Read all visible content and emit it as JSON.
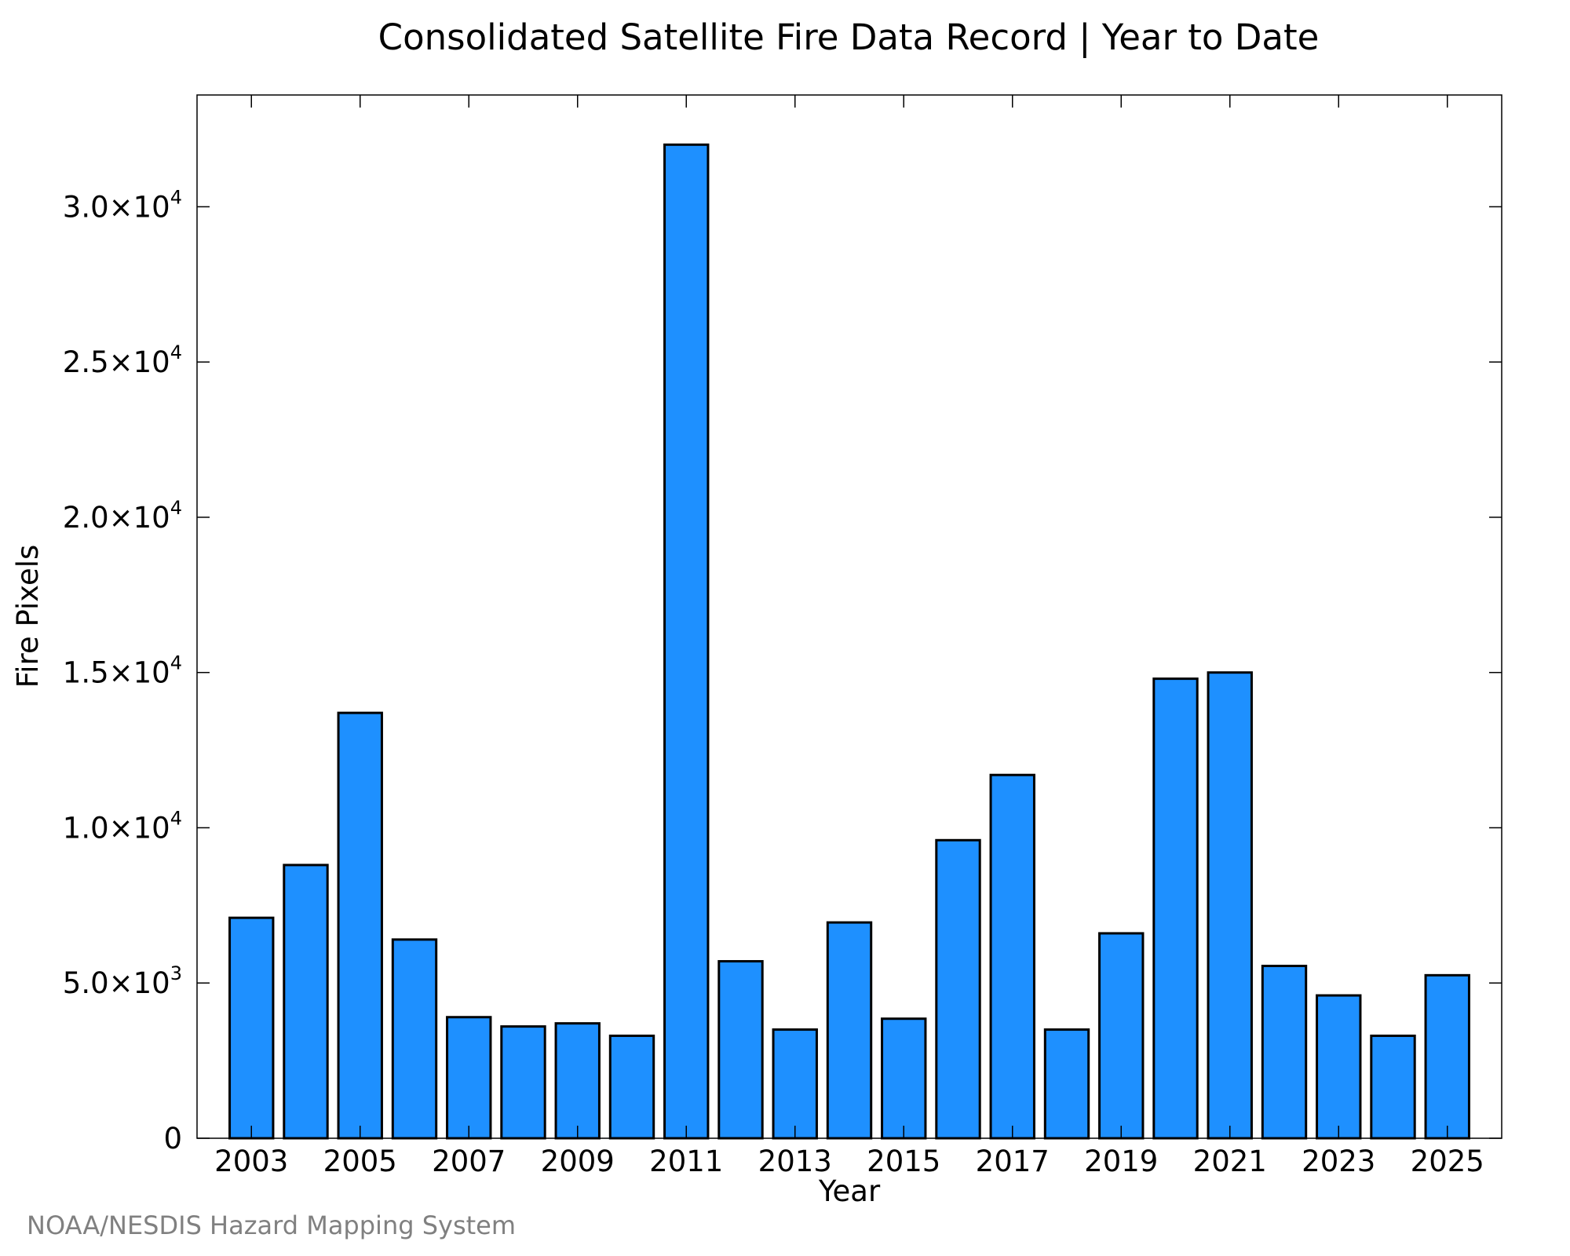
{
  "chart_data": {
    "type": "bar",
    "title": "Consolidated Satellite Fire Data Record | Year to Date",
    "xlabel": "Year",
    "ylabel": "Fire Pixels",
    "credit": "NOAA/NESDIS Hazard Mapping System",
    "bar_color": "#1e90ff",
    "bar_edge_color": "#000000",
    "grid": false,
    "legend": "none",
    "ylim": [
      0,
      33600
    ],
    "xlim": [
      2002,
      2026
    ],
    "categories": [
      "2003",
      "2004",
      "2005",
      "2006",
      "2007",
      "2008",
      "2009",
      "2010",
      "2011",
      "2012",
      "2013",
      "2014",
      "2015",
      "2016",
      "2017",
      "2018",
      "2019",
      "2020",
      "2021",
      "2022",
      "2023",
      "2024",
      "2025"
    ],
    "values": [
      7100,
      8800,
      13700,
      6400,
      3900,
      3600,
      3700,
      3300,
      32000,
      5700,
      3500,
      6950,
      3850,
      9600,
      11700,
      3500,
      6600,
      14800,
      15000,
      5550,
      4600,
      3300,
      5250
    ],
    "x_ticks": [
      {
        "value": 2003,
        "label": "2003"
      },
      {
        "value": 2005,
        "label": "2005"
      },
      {
        "value": 2007,
        "label": "2007"
      },
      {
        "value": 2009,
        "label": "2009"
      },
      {
        "value": 2011,
        "label": "2011"
      },
      {
        "value": 2013,
        "label": "2013"
      },
      {
        "value": 2015,
        "label": "2015"
      },
      {
        "value": 2017,
        "label": "2017"
      },
      {
        "value": 2019,
        "label": "2019"
      },
      {
        "value": 2021,
        "label": "2021"
      },
      {
        "value": 2023,
        "label": "2023"
      },
      {
        "value": 2025,
        "label": "2025"
      }
    ],
    "y_ticks": [
      {
        "value": 0,
        "mantissa": "0",
        "exponent": ""
      },
      {
        "value": 5000,
        "mantissa": "5.0×10",
        "exponent": "3"
      },
      {
        "value": 10000,
        "mantissa": "1.0×10",
        "exponent": "4"
      },
      {
        "value": 15000,
        "mantissa": "1.5×10",
        "exponent": "4"
      },
      {
        "value": 20000,
        "mantissa": "2.0×10",
        "exponent": "4"
      },
      {
        "value": 25000,
        "mantissa": "2.5×10",
        "exponent": "4"
      },
      {
        "value": 30000,
        "mantissa": "3.0×10",
        "exponent": "4"
      }
    ]
  }
}
